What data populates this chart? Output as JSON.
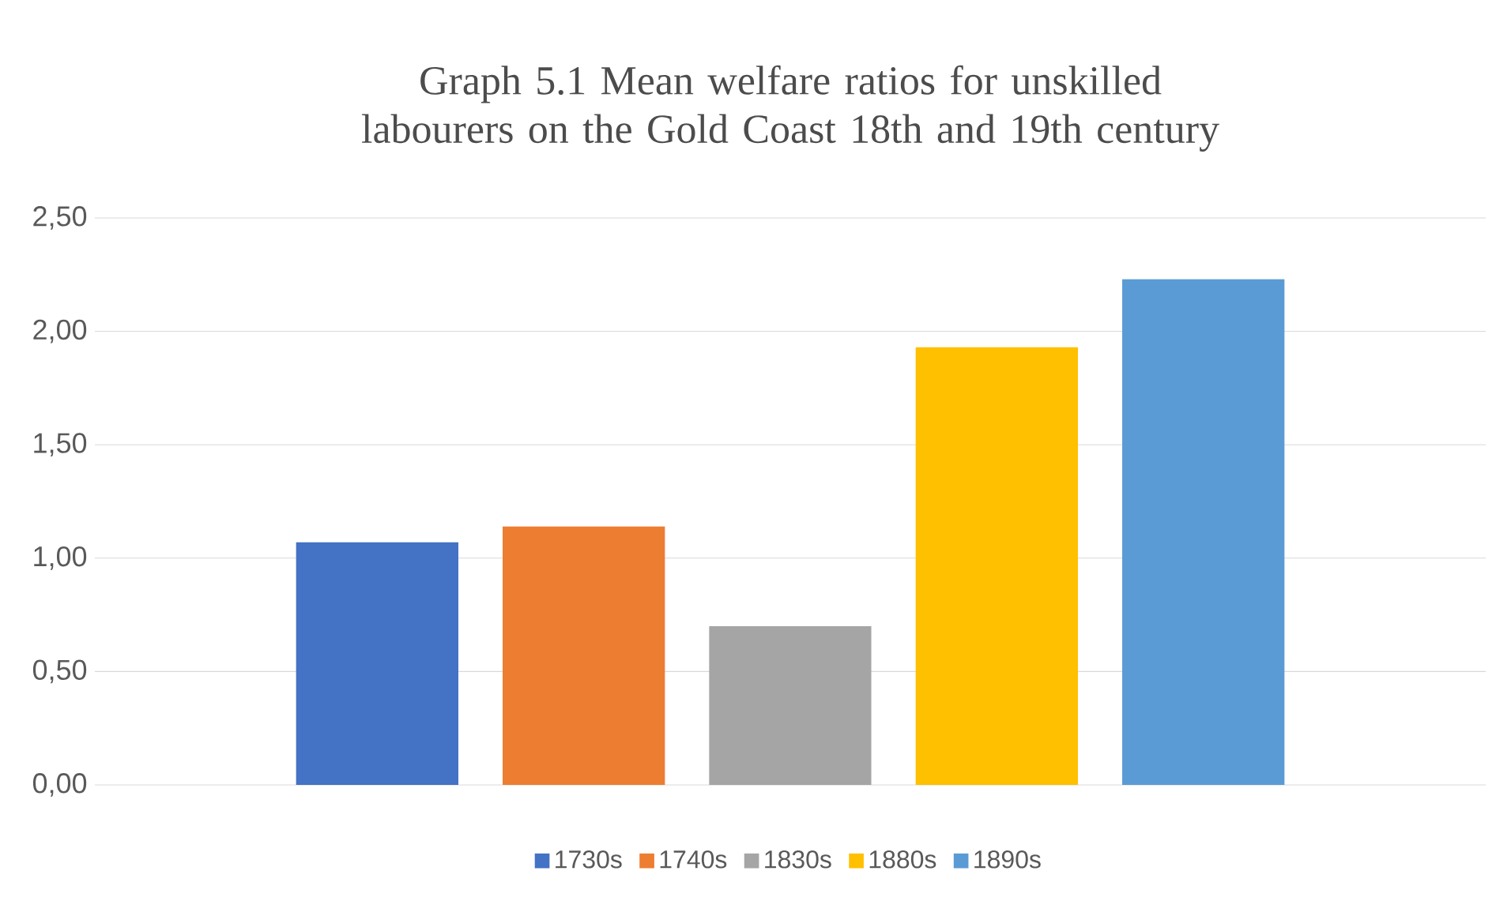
{
  "chart_data": {
    "type": "bar",
    "title": "Graph 5.1 Mean welfare ratios for unskilled labourers on the Gold Coast 18th and 19th century",
    "categories": [
      null
    ],
    "series": [
      {
        "name": "1730s",
        "color": "#4472c4",
        "values": [
          1.07
        ]
      },
      {
        "name": "1740s",
        "color": "#ed7d31",
        "values": [
          1.14
        ]
      },
      {
        "name": "1830s",
        "color": "#a5a5a5",
        "values": [
          0.7
        ]
      },
      {
        "name": "1880s",
        "color": "#ffc000",
        "values": [
          1.93
        ]
      },
      {
        "name": "1890s",
        "color": "#5b9bd5",
        "values": [
          2.23
        ]
      }
    ],
    "ylim": [
      0,
      2.5
    ],
    "yticks": [
      {
        "value": 0,
        "label": "0,00"
      },
      {
        "value": 0.5,
        "label": "0,50"
      },
      {
        "value": 1,
        "label": "1,00"
      },
      {
        "value": 1.5,
        "label": "1,50"
      },
      {
        "value": 2,
        "label": "2,00"
      },
      {
        "value": 2.5,
        "label": "2,50"
      }
    ],
    "grid": "y",
    "legend": "bottom"
  }
}
